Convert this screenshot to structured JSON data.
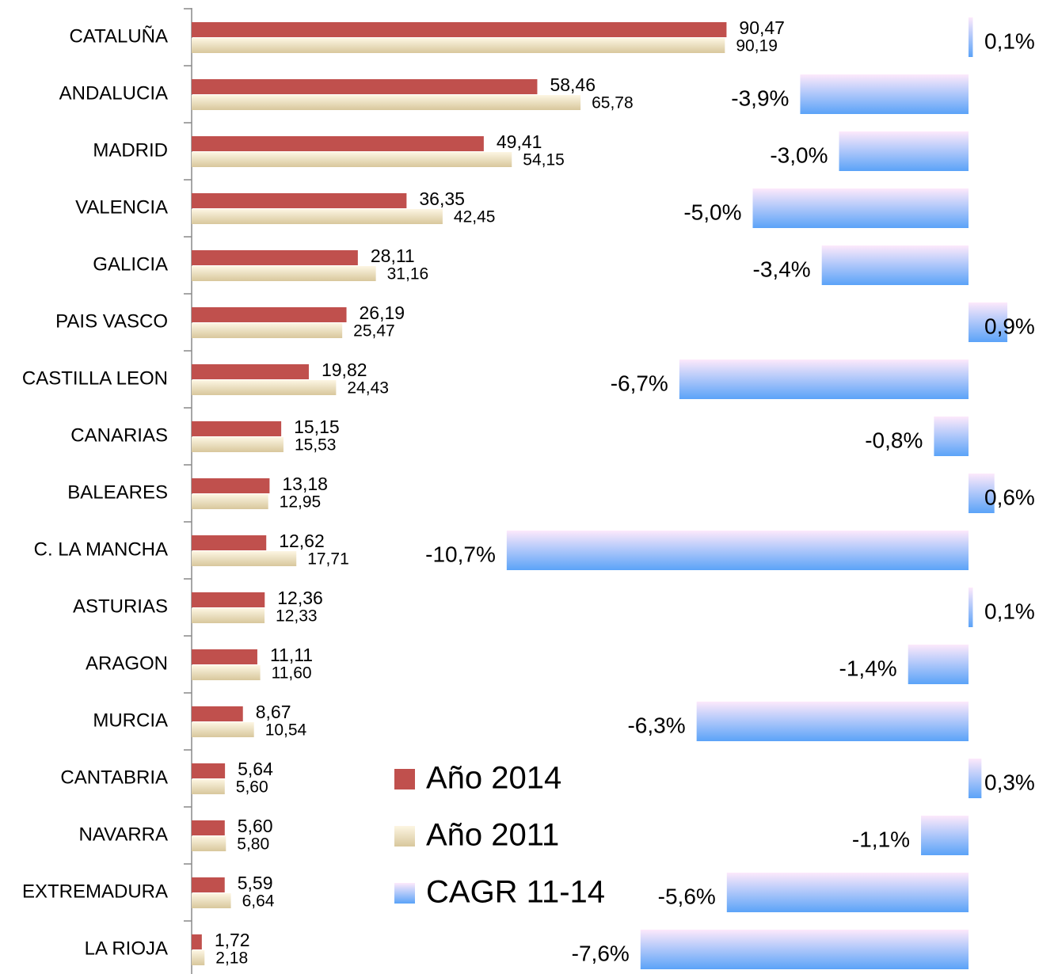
{
  "chart_data": {
    "type": "hbar",
    "categories": [
      "CATALUÑA",
      "ANDALUCIA",
      "MADRID",
      "VALENCIA",
      "GALICIA",
      "PAIS VASCO",
      "CASTILLA LEON",
      "CANARIAS",
      "BALEARES",
      "C. LA MANCHA",
      "ASTURIAS",
      "ARAGON",
      "MURCIA",
      "CANTABRIA",
      "NAVARRA",
      "EXTREMADURA",
      "LA RIOJA"
    ],
    "series": [
      {
        "name": "Año 2014",
        "color": "#c0504d",
        "values": [
          90.47,
          58.46,
          49.41,
          36.35,
          28.11,
          26.19,
          19.82,
          15.15,
          13.18,
          12.62,
          12.36,
          11.11,
          8.67,
          5.64,
          5.6,
          5.59,
          1.72
        ],
        "value_labels": [
          "90,47",
          "58,46",
          "49,41",
          "36,35",
          "28,11",
          "26,19",
          "19,82",
          "15,15",
          "13,18",
          "12,62",
          "12,36",
          "11,11",
          "8,67",
          "5,64",
          "5,60",
          "5,59",
          "1,72"
        ]
      },
      {
        "name": "Año 2011",
        "color": "#f5e9c8",
        "values": [
          90.19,
          65.78,
          54.15,
          42.45,
          31.16,
          25.47,
          24.43,
          15.53,
          12.95,
          17.71,
          12.33,
          11.6,
          10.54,
          5.6,
          5.8,
          6.64,
          2.18
        ],
        "value_labels": [
          "90,19",
          "65,78",
          "54,15",
          "42,45",
          "31,16",
          "25,47",
          "24,43",
          "15,53",
          "12,95",
          "17,71",
          "12,33",
          "11,60",
          "10,54",
          "5,60",
          "5,80",
          "6,64",
          "2,18"
        ]
      },
      {
        "name": "CAGR 11-14",
        "color": "#5ba3f8",
        "axis": "x2",
        "values": [
          0.1,
          -3.9,
          -3.0,
          -5.0,
          -3.4,
          0.9,
          -6.7,
          -0.8,
          0.6,
          -10.7,
          0.1,
          -1.4,
          -6.3,
          0.3,
          -1.1,
          -5.6,
          -7.6
        ],
        "value_labels": [
          "0,1%",
          "-3,9%",
          "-3,0%",
          "-5,0%",
          "-3,4%",
          "0,9%",
          "-6,7%",
          "-0,8%",
          "0,6%",
          "-10,7%",
          "0,1%",
          "-1,4%",
          "-6,3%",
          "0,3%",
          "-1,1%",
          "-5,6%",
          "-7,6%"
        ]
      }
    ],
    "xlim": [
      0,
      146
    ],
    "x2lim": [
      -18,
      2
    ]
  }
}
